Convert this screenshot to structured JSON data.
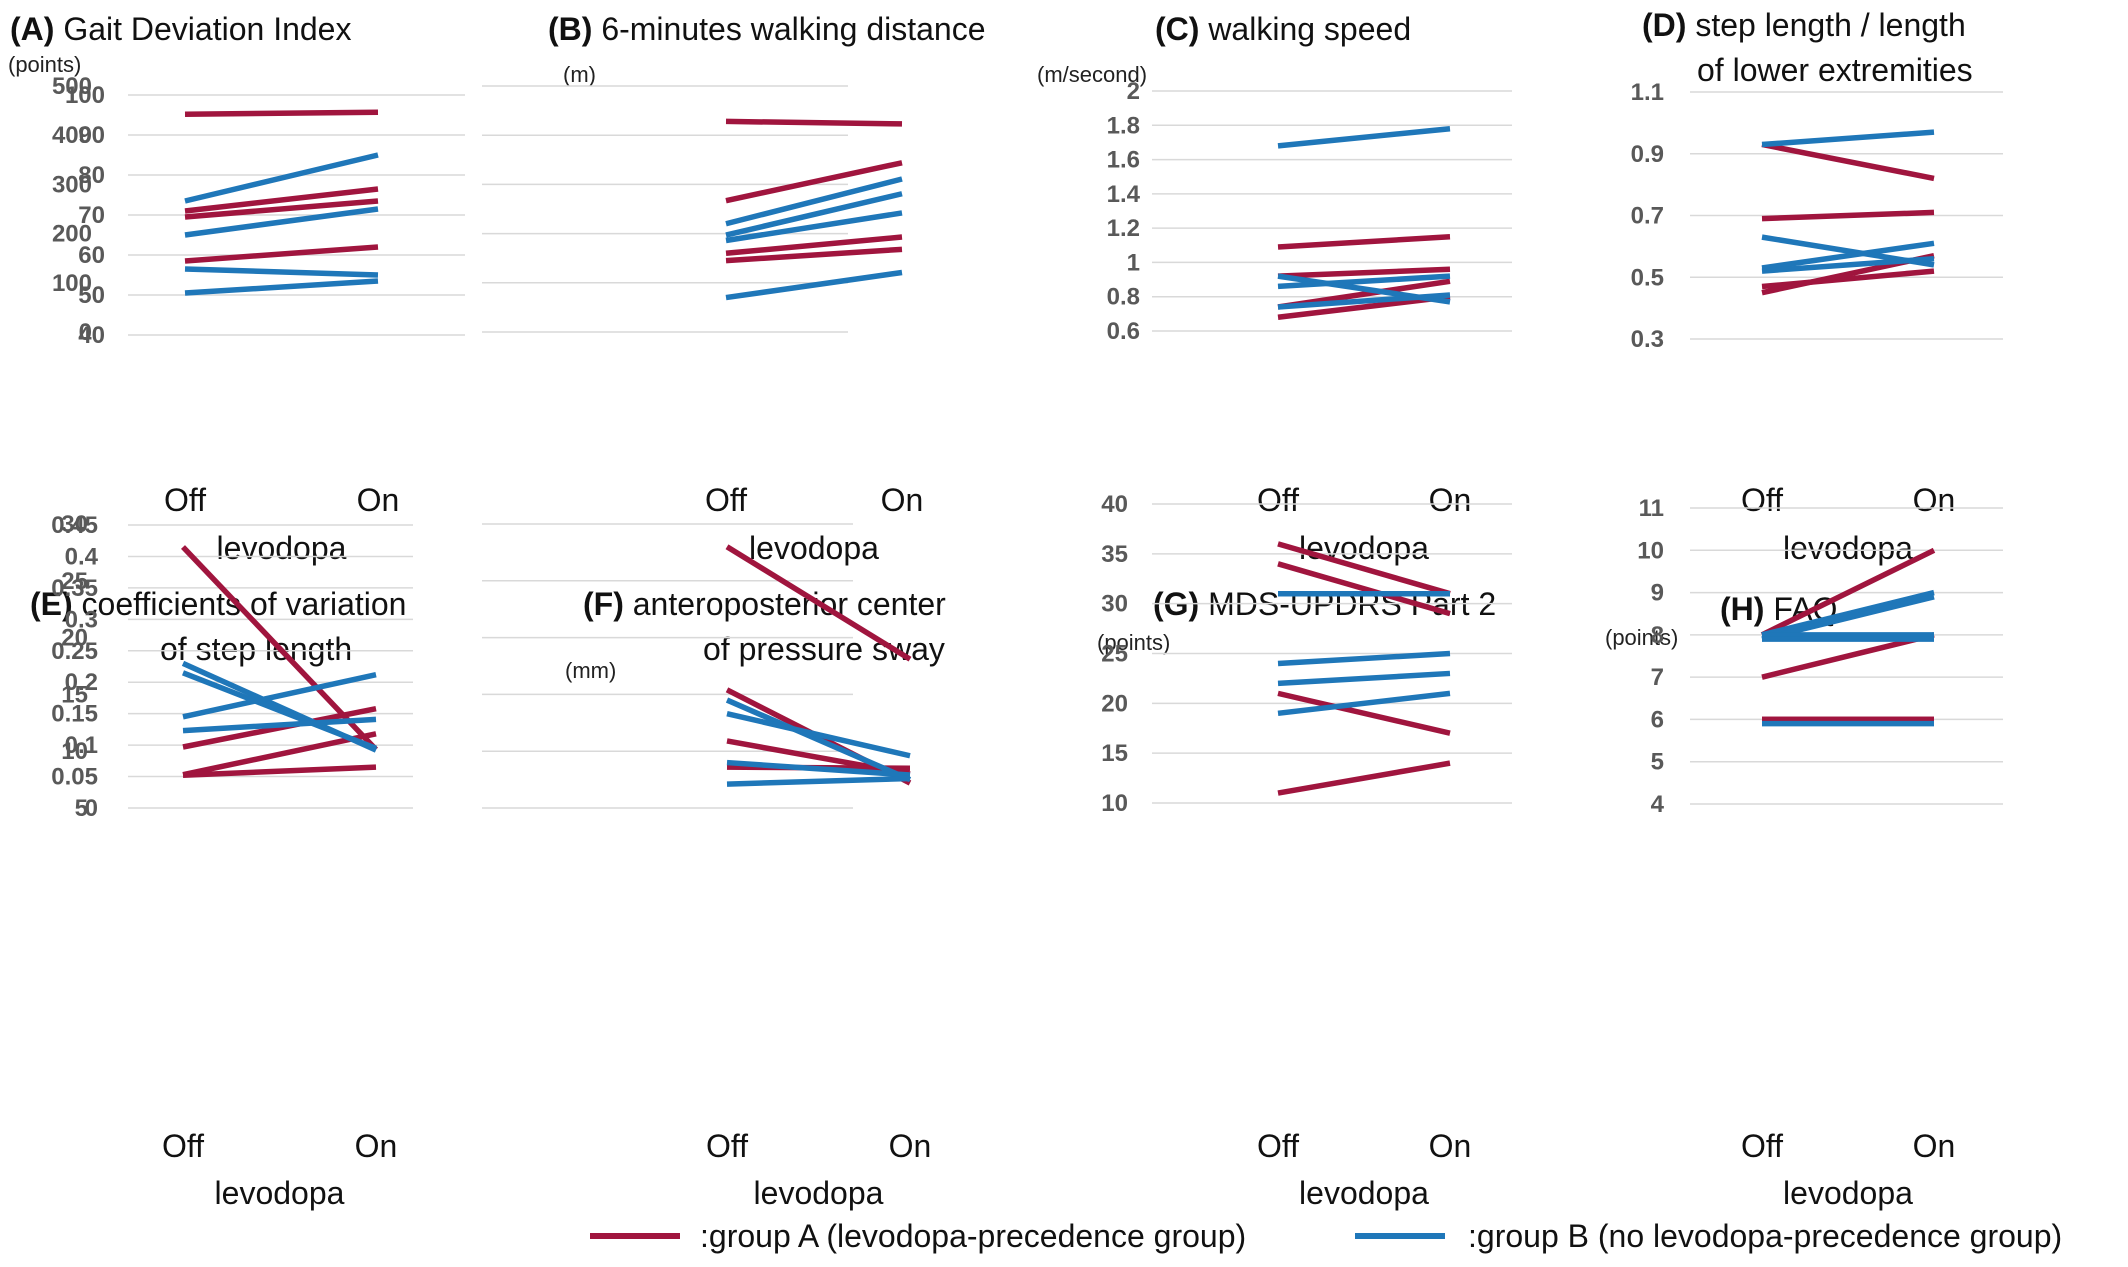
{
  "colors": {
    "group_a": "#A0153E",
    "group_b": "#1F77B9"
  },
  "legend": {
    "group_a": ":group A (levodopa-precedence group)",
    "group_b": ":group B (no levodopa-precedence group)"
  },
  "chart_data": [
    {
      "type": "line",
      "panel": "(A)",
      "title_lines": [
        "Gait Deviation Index"
      ],
      "unit": "(points)",
      "categories": [
        "Off",
        "On"
      ],
      "xlabel": "levodopa",
      "ylim": [
        40,
        100
      ],
      "ticks": [
        40,
        50,
        60,
        70,
        80,
        90,
        100
      ],
      "tick_labels": [
        "40",
        "50",
        "60",
        "70",
        "80",
        "90",
        "100"
      ],
      "series": [
        {
          "group": "A",
          "values": [
            95.2,
            95.7
          ]
        },
        {
          "group": "A",
          "values": [
            71.0,
            76.5
          ]
        },
        {
          "group": "A",
          "values": [
            69.5,
            73.5
          ]
        },
        {
          "group": "A",
          "values": [
            58.5,
            62.0
          ]
        },
        {
          "group": "B",
          "values": [
            73.5,
            85.0
          ]
        },
        {
          "group": "B",
          "values": [
            65.0,
            71.5
          ]
        },
        {
          "group": "B",
          "values": [
            56.5,
            55.0
          ]
        },
        {
          "group": "B",
          "values": [
            50.5,
            53.5
          ]
        }
      ]
    },
    {
      "type": "line",
      "panel": "(B)",
      "title_lines": [
        "6-minutes walking distance"
      ],
      "unit": "(m)",
      "categories": [
        "Off",
        "On"
      ],
      "xlabel": "levodopa",
      "ylim": [
        0,
        500
      ],
      "ticks": [
        0,
        100,
        200,
        300,
        400,
        500
      ],
      "tick_labels": [
        "0",
        "100",
        "200",
        "300",
        "400",
        "500"
      ],
      "series": [
        {
          "group": "A",
          "values": [
            428,
            423
          ]
        },
        {
          "group": "A",
          "values": [
            267,
            344
          ]
        },
        {
          "group": "A",
          "values": [
            160,
            193
          ]
        },
        {
          "group": "A",
          "values": [
            145,
            168
          ]
        },
        {
          "group": "B",
          "values": [
            220,
            311
          ]
        },
        {
          "group": "B",
          "values": [
            197,
            281
          ]
        },
        {
          "group": "B",
          "values": [
            186,
            242
          ]
        },
        {
          "group": "B",
          "values": [
            70,
            121
          ]
        }
      ]
    },
    {
      "type": "line",
      "panel": "(C)",
      "title_lines": [
        "walking speed"
      ],
      "unit": "(m/second)",
      "categories": [
        "Off",
        "On"
      ],
      "xlabel": "levodopa",
      "ylim": [
        0.6,
        2.0
      ],
      "ticks": [
        0.6,
        0.8,
        1.0,
        1.2,
        1.4,
        1.6,
        1.8,
        2.0
      ],
      "tick_labels": [
        "0.6",
        "0.8",
        "1",
        "1.2",
        "1.4",
        "1.6",
        "1.8",
        "2"
      ],
      "series": [
        {
          "group": "A",
          "values": [
            1.09,
            1.15
          ]
        },
        {
          "group": "A",
          "values": [
            0.92,
            0.96
          ]
        },
        {
          "group": "A",
          "values": [
            0.74,
            0.89
          ]
        },
        {
          "group": "A",
          "values": [
            0.68,
            0.8
          ]
        },
        {
          "group": "B",
          "values": [
            1.68,
            1.78
          ]
        },
        {
          "group": "B",
          "values": [
            0.92,
            0.77
          ]
        },
        {
          "group": "B",
          "values": [
            0.86,
            0.92
          ]
        },
        {
          "group": "B",
          "values": [
            0.74,
            0.81
          ]
        }
      ]
    },
    {
      "type": "line",
      "panel": "(D)",
      "title_lines": [
        "step length / length",
        "of lower extremities"
      ],
      "unit": "",
      "categories": [
        "Off",
        "On"
      ],
      "xlabel": "levodopa",
      "ylim": [
        0.3,
        1.1
      ],
      "ticks": [
        0.3,
        0.5,
        0.7,
        0.9,
        1.1
      ],
      "tick_labels": [
        "0.3",
        "0.5",
        "0.7",
        "0.9",
        "1.1"
      ],
      "series": [
        {
          "group": "A",
          "values": [
            0.93,
            0.82
          ]
        },
        {
          "group": "A",
          "values": [
            0.69,
            0.71
          ]
        },
        {
          "group": "A",
          "values": [
            0.47,
            0.52
          ]
        },
        {
          "group": "A",
          "values": [
            0.45,
            0.57
          ]
        },
        {
          "group": "B",
          "values": [
            0.93,
            0.97
          ]
        },
        {
          "group": "B",
          "values": [
            0.63,
            0.54
          ]
        },
        {
          "group": "B",
          "values": [
            0.53,
            0.61
          ]
        },
        {
          "group": "B",
          "values": [
            0.52,
            0.56
          ]
        }
      ]
    },
    {
      "type": "line",
      "panel": "(E)",
      "title_lines": [
        "coefficients of variation",
        "of step length"
      ],
      "unit": "",
      "categories": [
        "Off",
        "On"
      ],
      "xlabel": "levodopa",
      "ylim": [
        0,
        0.45
      ],
      "ticks": [
        0,
        0.05,
        0.1,
        0.15,
        0.2,
        0.25,
        0.3,
        0.35,
        0.4,
        0.45
      ],
      "tick_labels": [
        "0",
        "0.05",
        "0.1",
        "0.15",
        "0.2",
        "0.25",
        "0.3",
        "0.35",
        "0.4",
        "0.45"
      ],
      "series": [
        {
          "group": "A",
          "values": [
            0.415,
            0.093
          ]
        },
        {
          "group": "A",
          "values": [
            0.097,
            0.158
          ]
        },
        {
          "group": "A",
          "values": [
            0.053,
            0.118
          ]
        },
        {
          "group": "A",
          "values": [
            0.052,
            0.065
          ]
        },
        {
          "group": "B",
          "values": [
            0.23,
            0.092
          ]
        },
        {
          "group": "B",
          "values": [
            0.215,
            0.095
          ]
        },
        {
          "group": "B",
          "values": [
            0.145,
            0.212
          ]
        },
        {
          "group": "B",
          "values": [
            0.123,
            0.141
          ]
        }
      ]
    },
    {
      "type": "line",
      "panel": "(F)",
      "title_lines": [
        "anteroposterior center",
        "of pressure sway"
      ],
      "unit": "(mm)",
      "categories": [
        "Off",
        "On"
      ],
      "xlabel": "levodopa",
      "ylim": [
        5,
        30
      ],
      "ticks": [
        5,
        10,
        15,
        20,
        25,
        30
      ],
      "tick_labels": [
        "5",
        "10",
        "15",
        "20",
        "25",
        "30"
      ],
      "series": [
        {
          "group": "A",
          "values": [
            28.0,
            18.1
          ]
        },
        {
          "group": "A",
          "values": [
            15.4,
            7.2
          ]
        },
        {
          "group": "A",
          "values": [
            10.9,
            8.0
          ]
        },
        {
          "group": "A",
          "values": [
            8.6,
            8.5
          ]
        },
        {
          "group": "B",
          "values": [
            14.5,
            7.5
          ]
        },
        {
          "group": "B",
          "values": [
            13.3,
            9.6
          ]
        },
        {
          "group": "B",
          "values": [
            9.0,
            7.9
          ]
        },
        {
          "group": "B",
          "values": [
            7.1,
            7.6
          ]
        }
      ]
    },
    {
      "type": "line",
      "panel": "(G)",
      "title_lines": [
        "MDS-UPDRS Part 2"
      ],
      "unit": "(points)",
      "categories": [
        "Off",
        "On"
      ],
      "xlabel": "levodopa",
      "ylim": [
        10,
        40
      ],
      "ticks": [
        10,
        15,
        20,
        25,
        30,
        35,
        40
      ],
      "tick_labels": [
        "10",
        "15",
        "20",
        "25",
        "30",
        "35",
        "40"
      ],
      "series": [
        {
          "group": "A",
          "values": [
            36,
            31
          ]
        },
        {
          "group": "A",
          "values": [
            34,
            29
          ]
        },
        {
          "group": "A",
          "values": [
            21,
            17
          ]
        },
        {
          "group": "A",
          "values": [
            11,
            14
          ]
        },
        {
          "group": "B",
          "values": [
            31,
            31
          ]
        },
        {
          "group": "B",
          "values": [
            24,
            25
          ]
        },
        {
          "group": "B",
          "values": [
            22,
            23
          ]
        },
        {
          "group": "B",
          "values": [
            19,
            21
          ]
        }
      ]
    },
    {
      "type": "line",
      "panel": "(H)",
      "title_lines": [
        "FAQ"
      ],
      "unit": "(points)",
      "categories": [
        "Off",
        "On"
      ],
      "xlabel": "levodopa",
      "ylim": [
        4,
        11
      ],
      "ticks": [
        4,
        5,
        6,
        7,
        8,
        9,
        10,
        11
      ],
      "tick_labels": [
        "4",
        "5",
        "6",
        "7",
        "8",
        "9",
        "10",
        "11"
      ],
      "series": [
        {
          "group": "A",
          "values": [
            8,
            10
          ]
        },
        {
          "group": "A",
          "values": [
            7,
            8
          ]
        },
        {
          "group": "A",
          "values": [
            6,
            6
          ]
        },
        {
          "group": "A",
          "values": [
            6,
            6
          ]
        },
        {
          "group": "B",
          "values": [
            8,
            9
          ]
        },
        {
          "group": "B",
          "values": [
            7.9,
            8.9
          ]
        },
        {
          "group": "B",
          "values": [
            8,
            8
          ]
        },
        {
          "group": "B",
          "values": [
            7.9,
            7.9
          ]
        },
        {
          "group": "B",
          "values": [
            5.9,
            5.9
          ]
        }
      ]
    }
  ]
}
